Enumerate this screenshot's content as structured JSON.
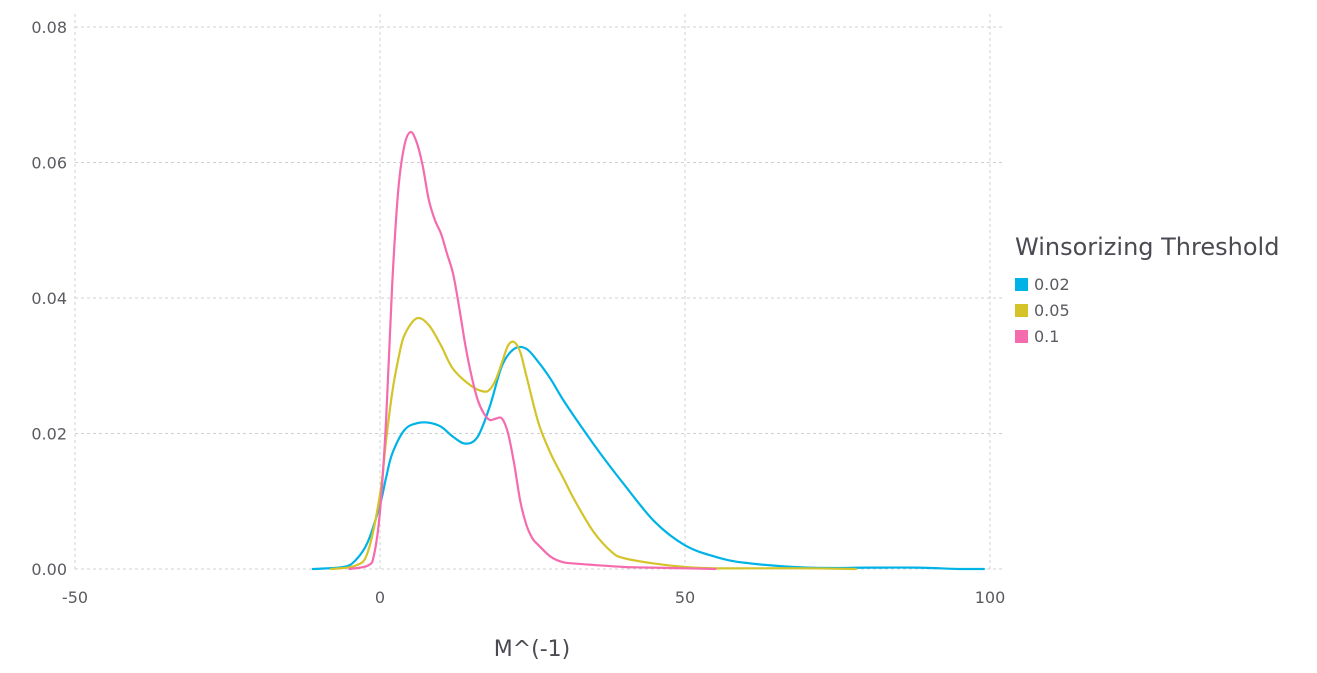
{
  "chart_data": {
    "type": "line",
    "title": "",
    "xlabel": "M^(-1)",
    "ylabel": "",
    "xlim": [
      -50,
      100
    ],
    "ylim": [
      0,
      0.08
    ],
    "xticks": [
      -50,
      0,
      50,
      100
    ],
    "xtick_labels": [
      "-50",
      "0",
      "50",
      "100"
    ],
    "yticks": [
      0,
      0.02,
      0.04,
      0.06,
      0.08
    ],
    "ytick_labels": [
      "0.00",
      "0.02",
      "0.04",
      "0.06",
      "0.08"
    ],
    "grid": true,
    "legend": {
      "title": "Winsorizing Threshold",
      "position": "right"
    },
    "series": [
      {
        "name": "0.02",
        "color": "#00b3e6",
        "x": [
          -11,
          -6,
          -4,
          -2,
          0,
          1,
          2,
          4,
          6,
          8,
          10,
          12,
          14,
          16,
          18,
          20,
          22,
          24,
          26,
          28,
          30,
          33,
          36,
          40,
          45,
          50,
          55,
          60,
          70,
          80,
          88,
          95,
          99
        ],
        "y": [
          0.0,
          0.0003,
          0.0013,
          0.004,
          0.0095,
          0.0135,
          0.017,
          0.0205,
          0.0215,
          0.0216,
          0.021,
          0.0195,
          0.0185,
          0.0195,
          0.024,
          0.03,
          0.0325,
          0.0325,
          0.0305,
          0.028,
          0.025,
          0.021,
          0.0172,
          0.0125,
          0.007,
          0.0035,
          0.0018,
          0.0009,
          0.0002,
          0.0002,
          0.0002,
          0.0,
          0.0
        ]
      },
      {
        "name": "0.05",
        "color": "#d4c42a",
        "x": [
          -8,
          -4,
          -2,
          0,
          1,
          2,
          3,
          4,
          6,
          8,
          10,
          12,
          15,
          17,
          18,
          19,
          20,
          21,
          22,
          23,
          24,
          26,
          28,
          30,
          32,
          35,
          38,
          40,
          45,
          50,
          55,
          60,
          70,
          78
        ],
        "y": [
          0.0,
          0.0005,
          0.0025,
          0.011,
          0.019,
          0.026,
          0.031,
          0.0345,
          0.037,
          0.036,
          0.033,
          0.0295,
          0.027,
          0.0262,
          0.0265,
          0.028,
          0.0305,
          0.033,
          0.0335,
          0.032,
          0.0285,
          0.0215,
          0.017,
          0.0135,
          0.01,
          0.0055,
          0.0025,
          0.0016,
          0.0008,
          0.0003,
          0.0001,
          0.0001,
          0.0001,
          0.0
        ]
      },
      {
        "name": "0.1",
        "color": "#f46bae",
        "x": [
          -5,
          -2,
          -1,
          0,
          1,
          2,
          3,
          4,
          5,
          6,
          7,
          8,
          9,
          10,
          11,
          12,
          13,
          14,
          15,
          16,
          17,
          18,
          19,
          20,
          21,
          22,
          23,
          24,
          25,
          26,
          28,
          30,
          32,
          35,
          40,
          45,
          50,
          55
        ],
        "y": [
          0.0,
          0.0005,
          0.002,
          0.0085,
          0.022,
          0.042,
          0.056,
          0.0625,
          0.0645,
          0.063,
          0.0595,
          0.0545,
          0.0515,
          0.0495,
          0.0465,
          0.0435,
          0.0385,
          0.033,
          0.0285,
          0.025,
          0.023,
          0.022,
          0.0222,
          0.0222,
          0.02,
          0.0155,
          0.01,
          0.0065,
          0.0045,
          0.0035,
          0.0018,
          0.001,
          0.0008,
          0.0006,
          0.0003,
          0.0002,
          0.0001,
          0.0
        ]
      }
    ]
  }
}
